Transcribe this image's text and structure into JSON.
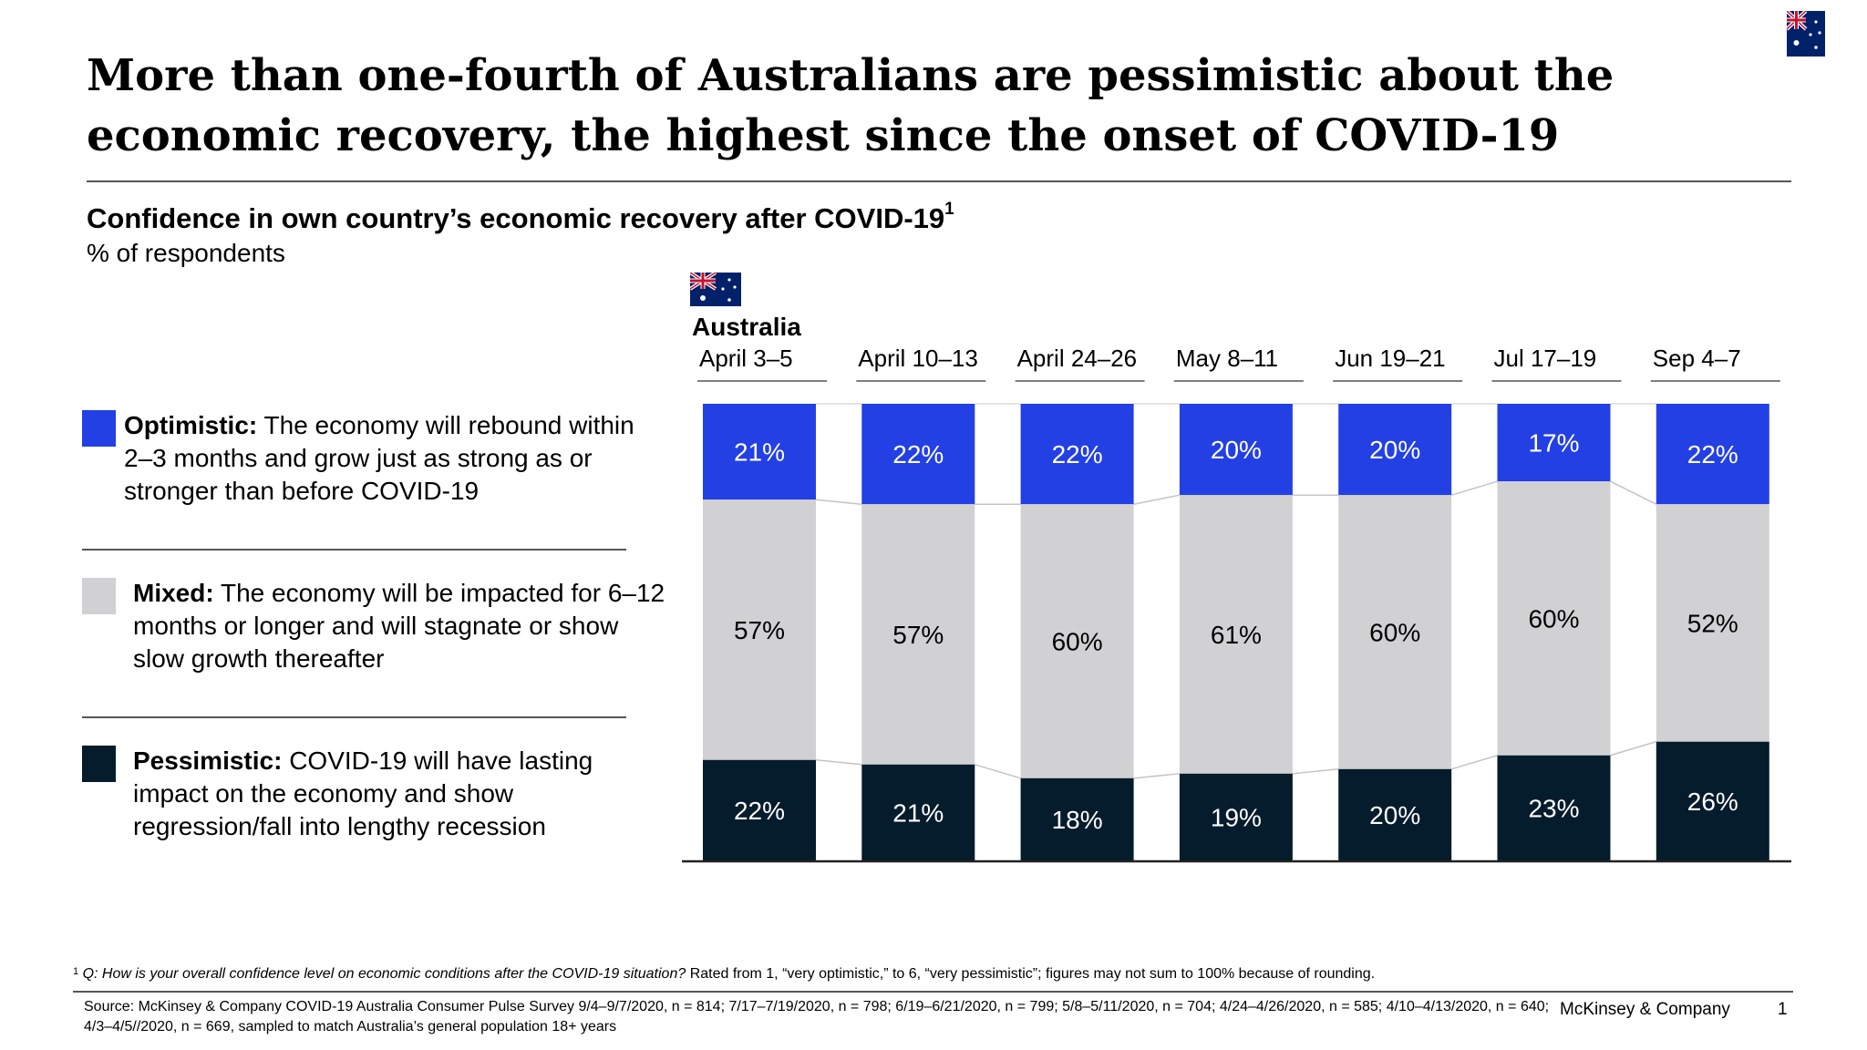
{
  "headline": "More than one-fourth of Australians are pessimistic about the economic recovery, the highest since the onset of COVID-19",
  "subtitle": "Confidence in own country’s economic recovery after COVID-19",
  "subtitle_footnote_marker": "1",
  "unit": "% of respondents",
  "country": "Australia",
  "legend": [
    {
      "key": "optimistic",
      "label": "Optimistic:",
      "text": "The economy will rebound within 2–3 months and grow just as strong as or stronger than before COVID-19",
      "color": "#2340e4"
    },
    {
      "key": "mixed",
      "label": "Mixed:",
      "text": "The economy will be impacted for 6–12 months or longer and will stagnate or show slow growth thereafter",
      "color": "#d1d1d3"
    },
    {
      "key": "pessimistic",
      "label": "Pessimistic:",
      "text": "COVID-19 will have lasting impact on the economy and show regression/fall into lengthy recession",
      "color": "#051c2c"
    }
  ],
  "chart_data": {
    "type": "bar",
    "stacked": true,
    "orientation": "vertical",
    "categories": [
      "April 3–5",
      "April 10–13",
      "April 24–26",
      "May 8–11",
      "Jun 19–21",
      "Jul 17–19",
      "Sep 4–7"
    ],
    "series": [
      {
        "name": "Optimistic",
        "values": [
          21,
          22,
          22,
          20,
          20,
          17,
          22
        ],
        "labels": [
          "21%",
          "22%",
          "22%",
          "20%",
          "20%",
          "17%",
          "22%"
        ],
        "color": "#2340e4",
        "text_color": "#ffffff"
      },
      {
        "name": "Mixed",
        "values": [
          57,
          57,
          60,
          61,
          60,
          60,
          52
        ],
        "labels": [
          "57%",
          "57%",
          "60%",
          "61%",
          "60%",
          "60%",
          "52%"
        ],
        "color": "#d1d1d3",
        "text_color": "#000000"
      },
      {
        "name": "Pessimistic",
        "values": [
          22,
          21,
          18,
          19,
          20,
          23,
          26
        ],
        "labels": [
          "22%",
          "21%",
          "18%",
          "19%",
          "20%",
          "23%",
          "26%"
        ],
        "color": "#051c2c",
        "text_color": "#ffffff"
      }
    ],
    "ylim": [
      0,
      100
    ],
    "grid": false,
    "legend": "left"
  },
  "footnote_marker": "1",
  "footnote_question": "Q: How is your overall confidence level on economic conditions after the COVID-19 situation?",
  "footnote_rest": " Rated from 1, “very optimistic,” to 6, “very pessimistic”; figures may not sum to 100% because of rounding.",
  "source": "Source: McKinsey & Company COVID-19 Australia Consumer Pulse Survey 9/4–9/7/2020, n = 814; 7/17–7/19/2020, n = 798; 6/19–6/21/2020, n = 799; 5/8–5/11/2020, n = 704; 4/24–4/26/2020, n = 585; 4/10–4/13/2020, n = 640; 4/3–4/5//2020, n = 669, sampled to match Australia’s general population 18+ years",
  "brand": "McKinsey & Company",
  "page_number": "1"
}
